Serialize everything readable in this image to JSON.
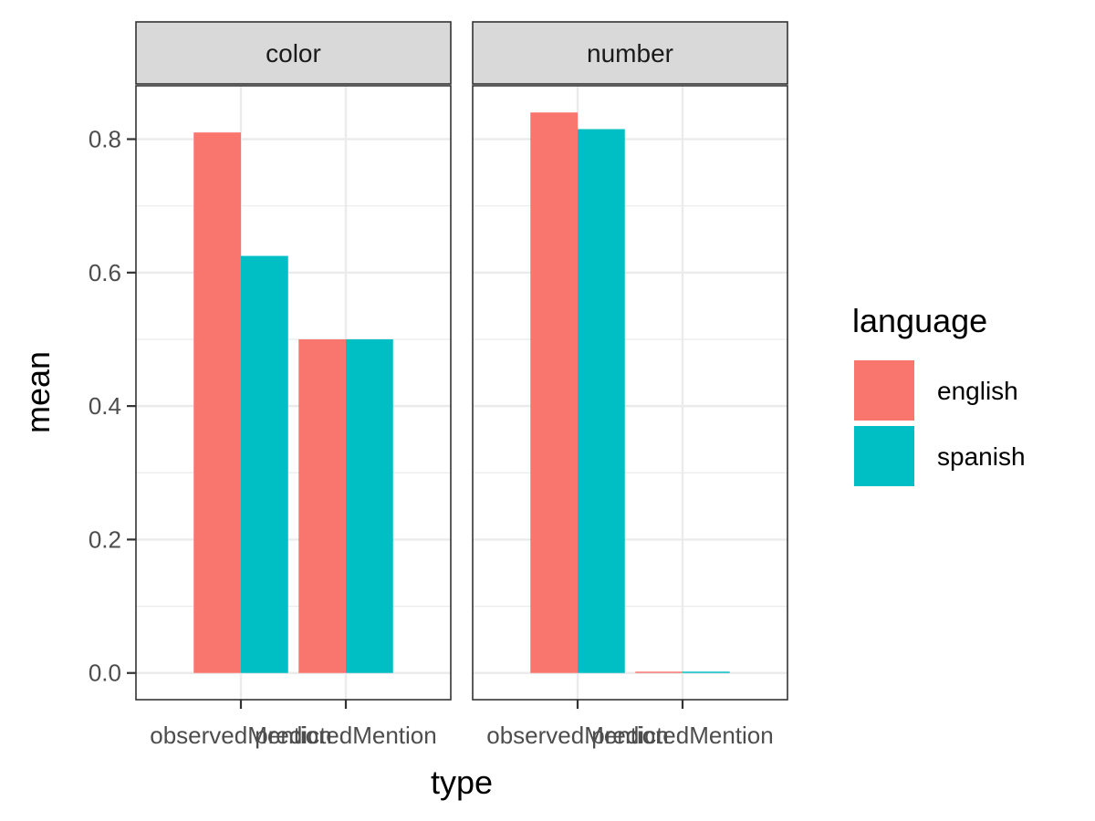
{
  "chart_data": {
    "type": "bar",
    "facets": [
      "color",
      "number"
    ],
    "categories": [
      "observedMention",
      "predictedMention"
    ],
    "series": [
      {
        "name": "english",
        "color": "#F8766D",
        "values": {
          "color": [
            0.81,
            0.5
          ],
          "number": [
            0.84,
            0.002
          ]
        }
      },
      {
        "name": "spanish",
        "color": "#00BFC4",
        "values": {
          "color": [
            0.625,
            0.5
          ],
          "number": [
            0.815,
            0.002
          ]
        }
      }
    ],
    "xlabel": "type",
    "ylabel": "mean",
    "yticks": [
      0.0,
      0.2,
      0.4,
      0.6,
      0.8
    ],
    "ylim": [
      -0.04,
      0.88
    ],
    "grid": true,
    "legend": {
      "title": "language",
      "position": "right"
    }
  }
}
